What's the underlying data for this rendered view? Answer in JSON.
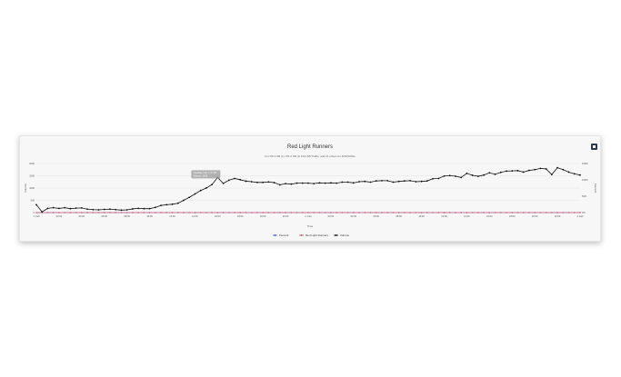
{
  "chart_data": {
    "type": "line",
    "title": "Red Light Runners",
    "subtitle": "For PR 2 SB (1), PR 2 SB (1) FH4 SB Traffic, and 21 others for 6/30/1004e",
    "xlabel": "Time",
    "ylabel_left": "Volume",
    "ylabel_right": "Percent",
    "y_left_ticks": [
      "0",
      "500",
      "1000",
      "1500",
      "2000"
    ],
    "y_left_range": [
      0,
      2000
    ],
    "y_right_ticks": [
      "0%",
      "50%",
      "100%",
      "150%"
    ],
    "x_tick_labels": [
      "1. Feb",
      "02:00",
      "04:00",
      "06:00",
      "08:00",
      "10:00",
      "12:00",
      "14:00",
      "16:00",
      "18:00",
      "20:00",
      "22:00",
      "2. Feb",
      "02:00",
      "04:00",
      "06:00",
      "08:00",
      "10:00",
      "12:00",
      "14:00",
      "16:00",
      "18:00",
      "20:00",
      "22:00",
      "3. Feb"
    ],
    "grid": true,
    "legend": "bottom",
    "series": [
      {
        "name": "Percent",
        "color": "#4363d8",
        "axis": "right",
        "values": [
          0,
          0,
          0,
          0,
          0,
          0,
          0,
          0,
          0,
          0,
          0,
          0,
          0,
          0,
          0,
          0,
          0,
          0,
          0,
          0,
          0,
          0,
          0,
          0,
          0,
          0,
          0,
          0,
          0,
          0,
          0,
          0,
          0,
          0,
          0,
          0,
          0,
          0,
          0,
          0,
          0,
          0,
          0,
          0,
          0,
          0,
          0,
          0,
          0,
          0,
          0,
          0,
          0,
          0,
          0,
          0,
          0,
          0,
          0,
          0,
          0,
          0,
          0,
          0,
          0,
          0,
          0,
          0,
          0,
          0,
          0,
          0,
          0,
          0,
          0,
          0,
          0,
          0,
          0,
          0,
          0,
          0,
          0,
          0,
          0,
          0,
          0,
          0,
          0,
          0,
          0,
          0,
          0,
          0,
          0,
          0,
          0
        ]
      },
      {
        "name": "Red Light Runners",
        "color": "#e05a6a",
        "axis": "left",
        "values": [
          0,
          0,
          0,
          0,
          0,
          0,
          0,
          0,
          0,
          0,
          0,
          0,
          0,
          0,
          0,
          0,
          0,
          0,
          0,
          0,
          0,
          0,
          0,
          0,
          0,
          0,
          0,
          0,
          0,
          0,
          0,
          0,
          0,
          0,
          0,
          0,
          0,
          0,
          0,
          0,
          0,
          0,
          0,
          0,
          0,
          0,
          0,
          0,
          0,
          0,
          0,
          0,
          0,
          0,
          0,
          0,
          0,
          0,
          0,
          0,
          0,
          0,
          0,
          0,
          0,
          0,
          0,
          0,
          0,
          0,
          0,
          0,
          0,
          0,
          0,
          0,
          0,
          0,
          0,
          0,
          0,
          0,
          0,
          0,
          0,
          0,
          0,
          0,
          0,
          0,
          0,
          0,
          0,
          0,
          0,
          0,
          0
        ]
      },
      {
        "name": "Volume",
        "color": "#111111",
        "axis": "left",
        "values": [
          320,
          30,
          170,
          200,
          170,
          200,
          160,
          180,
          190,
          140,
          120,
          110,
          130,
          140,
          120,
          100,
          110,
          150,
          170,
          160,
          160,
          210,
          290,
          320,
          340,
          380,
          500,
          620,
          760,
          900,
          1000,
          1140,
          1430,
          1190,
          1320,
          1390,
          1340,
          1280,
          1260,
          1230,
          1230,
          1250,
          1220,
          1130,
          1180,
          1160,
          1200,
          1200,
          1200,
          1180,
          1210,
          1200,
          1210,
          1200,
          1240,
          1240,
          1210,
          1260,
          1270,
          1240,
          1290,
          1300,
          1300,
          1240,
          1270,
          1290,
          1300,
          1260,
          1270,
          1290,
          1380,
          1390,
          1490,
          1510,
          1480,
          1430,
          1600,
          1520,
          1480,
          1530,
          1620,
          1560,
          1640,
          1690,
          1700,
          1710,
          1650,
          1720,
          1750,
          1800,
          1780,
          1550,
          1830,
          1750,
          1650,
          1580,
          1530
        ]
      }
    ],
    "tooltip": [
      "Tuesday, Feb 1, 07:00",
      "Volume: 1430"
    ]
  }
}
